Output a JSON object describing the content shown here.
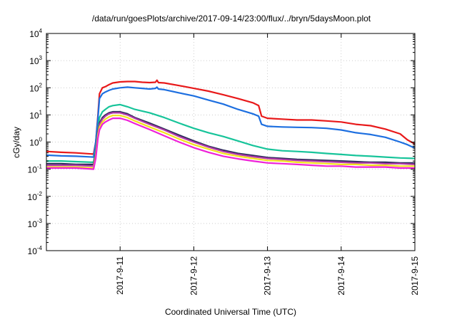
{
  "chart_data": {
    "type": "line",
    "title": "/data/run/goesPlots/archive/2017-09-14/23:00/flux/../bryn/5daysMoon.plot",
    "xlabel": "Coordinated Universal Time (UTC)",
    "ylabel": "cGy/day",
    "yscale": "log",
    "ylim": [
      0.0001,
      10000
    ],
    "xlim": [
      "2017-09-10 00:00",
      "2017-09-15 00:00"
    ],
    "x_ticks": [
      "2017-9-11",
      "2017-9-12",
      "2017-9-13",
      "2017-9-14",
      "2017-9-15"
    ],
    "y_ticks": [
      {
        "base": "10",
        "exp": "4",
        "value": 10000
      },
      {
        "base": "10",
        "exp": "3",
        "value": 1000
      },
      {
        "base": "10",
        "exp": "2",
        "value": 100
      },
      {
        "base": "10",
        "exp": "1",
        "value": 10
      },
      {
        "base": "10",
        "exp": "0",
        "value": 1
      },
      {
        "base": "10",
        "exp": "-1",
        "value": 0.1
      },
      {
        "base": "10",
        "exp": "-2",
        "value": 0.01
      },
      {
        "base": "10",
        "exp": "-3",
        "value": 0.001
      },
      {
        "base": "10",
        "exp": "-4",
        "value": 0.0001
      }
    ],
    "grid": true,
    "x_unit": "days since 2017-09-10 00:00",
    "series": [
      {
        "color": "#e8191a",
        "x": [
          0,
          0.2,
          0.4,
          0.64,
          0.67,
          0.7,
          0.72,
          0.76,
          0.8,
          0.85,
          0.9,
          1.0,
          1.1,
          1.2,
          1.3,
          1.4,
          1.48,
          1.5,
          1.52,
          1.6,
          1.8,
          2.0,
          2.2,
          2.4,
          2.6,
          2.8,
          2.88,
          2.92,
          3.0,
          3.2,
          3.4,
          3.6,
          3.8,
          4.0,
          4.2,
          4.4,
          4.6,
          4.8,
          4.9,
          5.0
        ],
        "y": [
          0.45,
          0.42,
          0.4,
          0.36,
          1.0,
          10,
          60,
          100,
          110,
          130,
          150,
          165,
          170,
          170,
          160,
          155,
          160,
          190,
          155,
          150,
          120,
          95,
          75,
          55,
          40,
          28,
          22,
          9,
          7.5,
          7,
          6.5,
          6.5,
          6,
          5.5,
          4.5,
          4.0,
          3.0,
          2.0,
          1.2,
          0.85
        ]
      },
      {
        "color": "#1d6fe0",
        "x": [
          0,
          0.2,
          0.4,
          0.64,
          0.67,
          0.7,
          0.72,
          0.76,
          0.8,
          0.85,
          0.9,
          1.0,
          1.1,
          1.2,
          1.3,
          1.4,
          1.48,
          1.5,
          1.52,
          1.6,
          1.8,
          2.0,
          2.2,
          2.4,
          2.6,
          2.8,
          2.88,
          2.92,
          3.0,
          3.2,
          3.4,
          3.6,
          3.8,
          4.0,
          4.2,
          4.4,
          4.6,
          4.8,
          4.9,
          5.0
        ],
        "y": [
          0.33,
          0.31,
          0.3,
          0.28,
          1.0,
          8,
          40,
          60,
          70,
          80,
          90,
          100,
          105,
          100,
          95,
          90,
          95,
          105,
          90,
          85,
          65,
          50,
          35,
          25,
          16,
          11,
          9,
          4.5,
          3.8,
          3.6,
          3.5,
          3.4,
          3.2,
          2.8,
          2.2,
          1.9,
          1.5,
          1.0,
          0.8,
          0.6
        ]
      },
      {
        "color": "#17c49a",
        "x": [
          0,
          0.2,
          0.4,
          0.64,
          0.67,
          0.7,
          0.72,
          0.76,
          0.8,
          0.85,
          0.9,
          1.0,
          1.1,
          1.2,
          1.4,
          1.6,
          1.8,
          2.0,
          2.2,
          2.4,
          2.6,
          2.8,
          3.0,
          3.2,
          3.4,
          3.6,
          3.8,
          4.0,
          4.2,
          4.4,
          4.6,
          4.8,
          5.0
        ],
        "y": [
          0.2,
          0.2,
          0.19,
          0.18,
          0.5,
          3,
          8,
          13,
          16,
          20,
          22,
          24,
          20,
          16,
          12,
          8,
          5,
          3.2,
          2.2,
          1.6,
          1.1,
          0.75,
          0.55,
          0.48,
          0.45,
          0.42,
          0.38,
          0.35,
          0.32,
          0.3,
          0.28,
          0.26,
          0.25
        ]
      },
      {
        "color": "#2b2b5a",
        "x": [
          0,
          0.2,
          0.4,
          0.64,
          0.67,
          0.7,
          0.72,
          0.76,
          0.8,
          0.85,
          0.9,
          1.0,
          1.1,
          1.2,
          1.4,
          1.6,
          1.8,
          2.0,
          2.2,
          2.4,
          2.6,
          2.8,
          3.0,
          3.2,
          3.4,
          3.6,
          3.8,
          4.0,
          4.2,
          4.4,
          4.6,
          4.8,
          5.0
        ],
        "y": [
          0.16,
          0.16,
          0.15,
          0.15,
          0.4,
          2.5,
          5,
          8,
          10,
          12,
          13,
          13,
          11,
          8,
          5,
          3,
          1.8,
          1.1,
          0.7,
          0.5,
          0.38,
          0.32,
          0.27,
          0.25,
          0.23,
          0.22,
          0.21,
          0.2,
          0.19,
          0.18,
          0.18,
          0.17,
          0.17
        ]
      },
      {
        "color": "#b23aa8",
        "x": [
          0,
          0.2,
          0.4,
          0.64,
          0.67,
          0.7,
          0.72,
          0.76,
          0.8,
          0.85,
          0.9,
          1.0,
          1.1,
          1.2,
          1.4,
          1.6,
          1.8,
          2.0,
          2.2,
          2.4,
          2.6,
          2.8,
          3.0,
          3.2,
          3.4,
          3.6,
          3.8,
          4.0,
          4.2,
          4.4,
          4.6,
          4.8,
          5.0
        ],
        "y": [
          0.14,
          0.14,
          0.14,
          0.13,
          0.35,
          2.2,
          4.5,
          7,
          9,
          11,
          12,
          12,
          10,
          7.5,
          4.5,
          2.8,
          1.6,
          1.0,
          0.65,
          0.45,
          0.35,
          0.29,
          0.25,
          0.23,
          0.21,
          0.2,
          0.19,
          0.18,
          0.17,
          0.17,
          0.16,
          0.16,
          0.15
        ]
      },
      {
        "color": "#f2e21b",
        "x": [
          0,
          0.2,
          0.4,
          0.64,
          0.67,
          0.7,
          0.72,
          0.76,
          0.8,
          0.85,
          0.9,
          1.0,
          1.1,
          1.2,
          1.4,
          1.6,
          1.8,
          2.0,
          2.2,
          2.4,
          2.6,
          2.8,
          3.0,
          3.2,
          3.4,
          3.6,
          3.8,
          4.0,
          4.2,
          4.4,
          4.6,
          4.8,
          5.0
        ],
        "y": [
          0.12,
          0.12,
          0.12,
          0.11,
          0.3,
          1.8,
          3.5,
          5.5,
          7,
          8.5,
          9.5,
          9.5,
          8,
          6,
          3.6,
          2.2,
          1.3,
          0.8,
          0.55,
          0.38,
          0.3,
          0.25,
          0.21,
          0.2,
          0.18,
          0.17,
          0.16,
          0.15,
          0.15,
          0.14,
          0.14,
          0.13,
          0.13
        ]
      },
      {
        "color": "#ee22d8",
        "x": [
          0,
          0.2,
          0.4,
          0.64,
          0.67,
          0.7,
          0.72,
          0.76,
          0.8,
          0.85,
          0.9,
          1.0,
          1.1,
          1.2,
          1.4,
          1.6,
          1.8,
          2.0,
          2.2,
          2.4,
          2.6,
          2.8,
          3.0,
          3.2,
          3.4,
          3.6,
          3.8,
          4.0,
          4.2,
          4.4,
          4.6,
          4.8,
          5.0
        ],
        "y": [
          0.11,
          0.11,
          0.11,
          0.1,
          0.25,
          1.4,
          2.8,
          4.5,
          5.5,
          6.5,
          7.5,
          7.5,
          6.3,
          4.8,
          2.9,
          1.7,
          1.0,
          0.62,
          0.42,
          0.3,
          0.24,
          0.2,
          0.17,
          0.16,
          0.15,
          0.14,
          0.13,
          0.13,
          0.12,
          0.12,
          0.12,
          0.11,
          0.11
        ]
      }
    ]
  }
}
